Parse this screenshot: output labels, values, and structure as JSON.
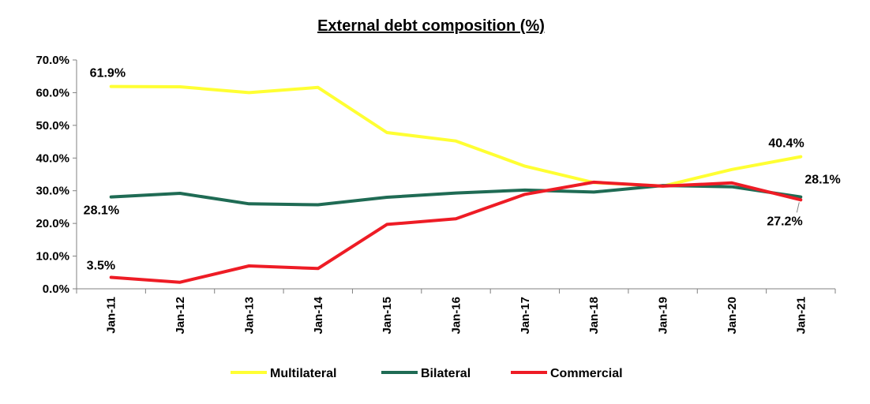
{
  "chart_data": {
    "type": "line",
    "title": "External debt composition (%)",
    "xlabel": "",
    "ylabel": "",
    "categories": [
      "Jan-11",
      "Jan-12",
      "Jan-13",
      "Jan-14",
      "Jan-15",
      "Jan-16",
      "Jan-17",
      "Jan-18",
      "Jan-19",
      "Jan-20",
      "Jan-21"
    ],
    "ylim": [
      0,
      70
    ],
    "y_ticks": [
      "0.0%",
      "10.0%",
      "20.0%",
      "30.0%",
      "40.0%",
      "50.0%",
      "60.0%",
      "70.0%"
    ],
    "y_tick_values": [
      0,
      10,
      20,
      30,
      40,
      50,
      60,
      70
    ],
    "grid": false,
    "legend_position": "bottom",
    "series": [
      {
        "name": "Multilateral",
        "color": "#FFFF33",
        "values": [
          61.9,
          61.8,
          60.0,
          61.6,
          47.8,
          45.2,
          37.5,
          32.5,
          31.4,
          36.5,
          40.4
        ]
      },
      {
        "name": "Bilateral",
        "color": "#1F6B54",
        "values": [
          28.1,
          29.2,
          26.0,
          25.7,
          28.0,
          29.3,
          30.2,
          29.6,
          31.6,
          31.2,
          28.1
        ]
      },
      {
        "name": "Commercial",
        "color": "#EE1C25",
        "values": [
          3.5,
          2.0,
          7.0,
          6.2,
          19.7,
          21.4,
          28.9,
          32.6,
          31.4,
          32.4,
          27.2
        ]
      }
    ],
    "data_labels": [
      {
        "series": 0,
        "index": 0,
        "text": "61.9%"
      },
      {
        "series": 1,
        "index": 0,
        "text": "28.1%"
      },
      {
        "series": 2,
        "index": 0,
        "text": "3.5%"
      },
      {
        "series": 0,
        "index": 10,
        "text": "40.4%"
      },
      {
        "series": 1,
        "index": 10,
        "text": "28.1%"
      },
      {
        "series": 2,
        "index": 10,
        "text": "27.2%"
      }
    ]
  }
}
